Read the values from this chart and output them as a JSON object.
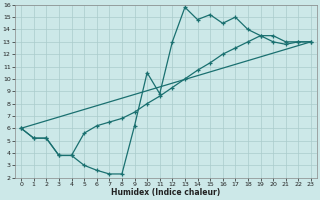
{
  "xlabel": "Humidex (Indice chaleur)",
  "bg_color": "#cce8e8",
  "grid_color": "#aacccc",
  "line_color": "#1a7070",
  "xlim": [
    -0.5,
    23.5
  ],
  "ylim": [
    2,
    16
  ],
  "xticks": [
    0,
    1,
    2,
    3,
    4,
    5,
    6,
    7,
    8,
    9,
    10,
    11,
    12,
    13,
    14,
    15,
    16,
    17,
    18,
    19,
    20,
    21,
    22,
    23
  ],
  "yticks": [
    2,
    3,
    4,
    5,
    6,
    7,
    8,
    9,
    10,
    11,
    12,
    13,
    14,
    15,
    16
  ],
  "line1_x": [
    0,
    1,
    2,
    3,
    4,
    5,
    6,
    7,
    8,
    9,
    10,
    11,
    12,
    13,
    14,
    15,
    16,
    17,
    18,
    19,
    20,
    21,
    22,
    23
  ],
  "line1_y": [
    6.0,
    5.2,
    5.2,
    3.8,
    3.8,
    3.0,
    2.6,
    2.3,
    2.3,
    6.2,
    10.5,
    8.8,
    13.0,
    15.8,
    14.8,
    15.2,
    14.5,
    15.0,
    14.0,
    13.5,
    13.0,
    12.8,
    13.0,
    13.0
  ],
  "line2_x": [
    0,
    1,
    2,
    3,
    4,
    5,
    6,
    7,
    8,
    9,
    10,
    11,
    12,
    13,
    14,
    15,
    16,
    17,
    18,
    19,
    20,
    21,
    22,
    23
  ],
  "line2_y": [
    6.0,
    5.2,
    5.2,
    3.8,
    3.8,
    5.6,
    6.2,
    6.5,
    6.8,
    7.3,
    8.0,
    8.6,
    9.3,
    10.0,
    10.7,
    11.3,
    12.0,
    12.5,
    13.0,
    13.5,
    13.5,
    13.0,
    13.0,
    13.0
  ],
  "line3_x": [
    0,
    23
  ],
  "line3_y": [
    6.0,
    13.0
  ]
}
